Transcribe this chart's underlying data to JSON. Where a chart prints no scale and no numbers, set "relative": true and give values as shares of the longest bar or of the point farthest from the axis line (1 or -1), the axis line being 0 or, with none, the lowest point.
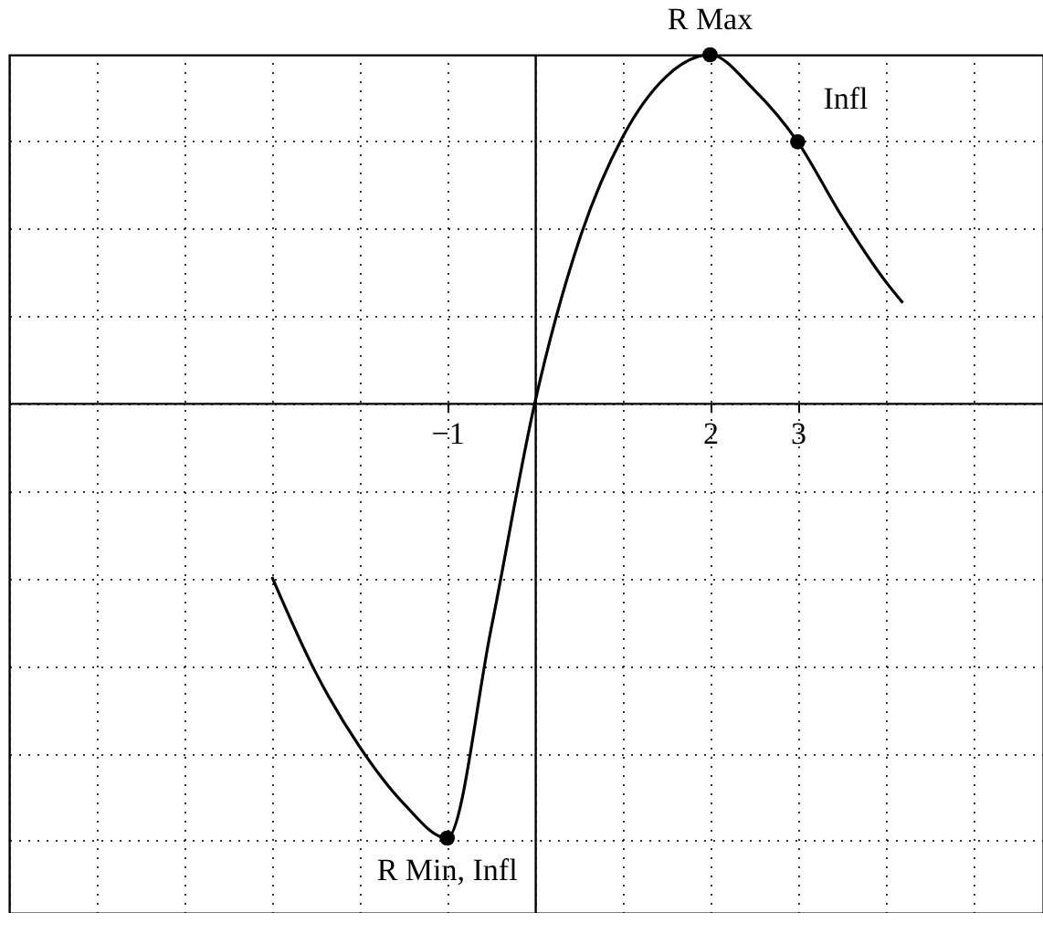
{
  "chart_data": {
    "type": "line",
    "relative": true,
    "series": [
      {
        "color": "#000000",
        "x": [
          -3,
          -2.5,
          -2,
          -1.5,
          -1,
          -0.5,
          0,
          0.5,
          1,
          1.5,
          2,
          2.5,
          3,
          3.5,
          4,
          4.2
        ],
        "values": [
          -0.4,
          -0.62,
          -0.79,
          -0.92,
          -1,
          -0.52,
          0,
          0.37,
          0.61,
          0.75,
          0.8,
          0.72,
          0.6,
          0.43,
          0.28,
          0.23
        ]
      },
      {
        "type": "scatter",
        "marker": "circle",
        "color": "#000000",
        "x": [
          -1,
          2,
          3
        ],
        "values": [
          -1,
          0.8,
          0.6
        ]
      }
    ],
    "annotations": [
      {
        "text": "R Max",
        "x": 2,
        "y": 0.8
      },
      {
        "text": "Infl",
        "x": 3,
        "y": 0.6
      },
      {
        "text": "R Min, Infl",
        "x": -1,
        "y": -1
      }
    ],
    "xlim": [
      -6,
      5.8
    ],
    "xticks": [
      {
        "value": -6,
        "label": null
      },
      {
        "value": -5,
        "label": null
      },
      {
        "value": -4,
        "label": null
      },
      {
        "value": -3,
        "label": null
      },
      {
        "value": -2,
        "label": null
      },
      {
        "value": -1,
        "label": "−1"
      },
      {
        "value": 0,
        "label": null
      },
      {
        "value": 1,
        "label": null
      },
      2,
      3,
      {
        "value": 4,
        "label": null
      },
      {
        "value": 5,
        "label": null
      }
    ],
    "tick_labels": "x",
    "grid": true,
    "line_style": "solid"
  }
}
